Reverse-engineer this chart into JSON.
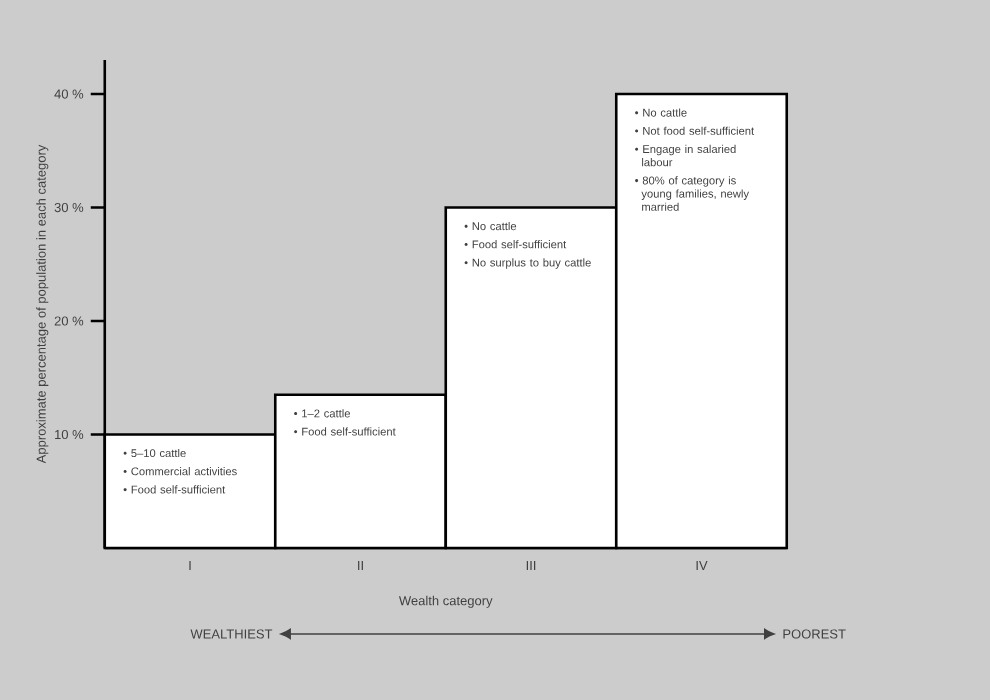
{
  "chart_data": {
    "type": "bar",
    "xlabel": "Wealth category",
    "ylabel": "Approximate percentage of population in each category",
    "categories": [
      "I",
      "II",
      "III",
      "IV"
    ],
    "values": [
      10,
      13.5,
      30,
      40
    ],
    "color": "#ffffff",
    "ylim": [
      0,
      43
    ],
    "yticks": [
      {
        "value": 10,
        "label": "10 %"
      },
      {
        "value": 20,
        "label": "20 %"
      },
      {
        "value": 30,
        "label": "30 %"
      },
      {
        "value": 40,
        "label": "40 %"
      }
    ],
    "annotations": [
      "• 5–10 cattle",
      "• Commercial activities",
      "• Food self-sufficient",
      "• 1–2 cattle",
      "• Food self-sufficient",
      "• No cattle",
      "• Food self-sufficient",
      "• No surplus to buy cattle",
      "• No cattle",
      "• Not food self-sufficient",
      "• Engage in salaried labour",
      "• 80% of category is young families, newly married",
      "WEALTHIEST",
      "POOREST"
    ],
    "grid": false
  }
}
